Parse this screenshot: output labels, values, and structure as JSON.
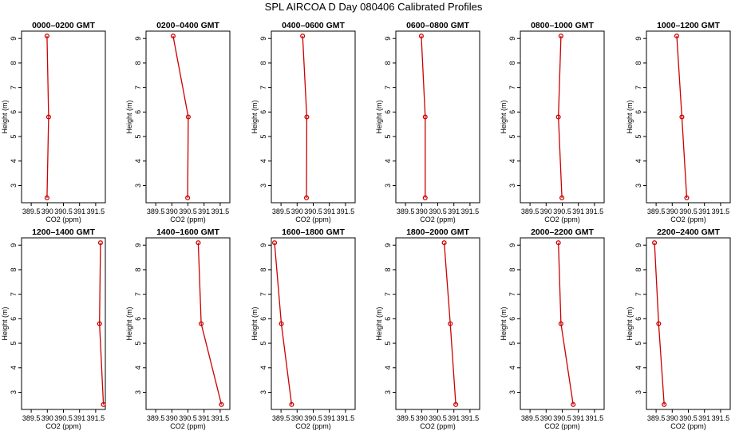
{
  "title": "SPL AIRCOA D  Day 080406  Calibrated Profiles",
  "colors": {
    "series": "#cc0000",
    "axis": "#000000"
  },
  "chart_data": [
    {
      "type": "line",
      "title": "0000–0200 GMT",
      "xlabel": "CO2 (ppm)",
      "ylabel": "Height (m)",
      "xlim": [
        389.2,
        391.8
      ],
      "ylim": [
        2.3,
        9.3
      ],
      "xticks": [
        "389.5",
        "390",
        "390.5",
        "391",
        "391.5"
      ],
      "yticks": [
        "3",
        "4",
        "5",
        "6",
        "7",
        "8",
        "9"
      ],
      "series": [
        {
          "values": [
            {
              "x": 389.99,
              "y": 2.5
            },
            {
              "x": 390.04,
              "y": 5.8
            },
            {
              "x": 389.99,
              "y": 9.1
            }
          ]
        }
      ]
    },
    {
      "type": "line",
      "title": "0200–0400 GMT",
      "xlabel": "CO2 (ppm)",
      "ylabel": "Height (m)",
      "xlim": [
        389.2,
        391.8
      ],
      "ylim": [
        2.3,
        9.3
      ],
      "xticks": [
        "389.5",
        "390",
        "390.5",
        "391",
        "391.5"
      ],
      "yticks": [
        "3",
        "4",
        "5",
        "6",
        "7",
        "8",
        "9"
      ],
      "series": [
        {
          "values": [
            {
              "x": 390.49,
              "y": 2.5
            },
            {
              "x": 390.51,
              "y": 5.8
            },
            {
              "x": 390.04,
              "y": 9.1
            }
          ]
        }
      ]
    },
    {
      "type": "line",
      "title": "0400–0600 GMT",
      "xlabel": "CO2 (ppm)",
      "ylabel": "Height (m)",
      "xlim": [
        389.2,
        391.8
      ],
      "ylim": [
        2.3,
        9.3
      ],
      "xticks": [
        "389.5",
        "390",
        "390.5",
        "391",
        "391.5"
      ],
      "yticks": [
        "3",
        "4",
        "5",
        "6",
        "7",
        "8",
        "9"
      ],
      "series": [
        {
          "values": [
            {
              "x": 390.29,
              "y": 2.5
            },
            {
              "x": 390.3,
              "y": 5.8
            },
            {
              "x": 390.17,
              "y": 9.1
            }
          ]
        }
      ]
    },
    {
      "type": "line",
      "title": "0600–0800 GMT",
      "xlabel": "CO2 (ppm)",
      "ylabel": "Height (m)",
      "xlim": [
        389.2,
        391.8
      ],
      "ylim": [
        2.3,
        9.3
      ],
      "xticks": [
        "389.5",
        "390",
        "390.5",
        "391",
        "391.5"
      ],
      "yticks": [
        "3",
        "4",
        "5",
        "6",
        "7",
        "8",
        "9"
      ],
      "series": [
        {
          "values": [
            {
              "x": 390.11,
              "y": 2.5
            },
            {
              "x": 390.11,
              "y": 5.8
            },
            {
              "x": 389.99,
              "y": 9.1
            }
          ]
        }
      ]
    },
    {
      "type": "line",
      "title": "0800–1000 GMT",
      "xlabel": "CO2 (ppm)",
      "ylabel": "Height (m)",
      "xlim": [
        389.2,
        391.8
      ],
      "ylim": [
        2.3,
        9.3
      ],
      "xticks": [
        "389.5",
        "390",
        "390.5",
        "391",
        "391.5"
      ],
      "yticks": [
        "3",
        "4",
        "5",
        "6",
        "7",
        "8",
        "9"
      ],
      "series": [
        {
          "values": [
            {
              "x": 390.49,
              "y": 2.5
            },
            {
              "x": 390.38,
              "y": 5.8
            },
            {
              "x": 390.46,
              "y": 9.1
            }
          ]
        }
      ]
    },
    {
      "type": "line",
      "title": "1000–1200 GMT",
      "xlabel": "CO2 (ppm)",
      "ylabel": "Height (m)",
      "xlim": [
        389.2,
        391.8
      ],
      "ylim": [
        2.3,
        9.3
      ],
      "xticks": [
        "389.5",
        "390",
        "390.5",
        "391",
        "391.5"
      ],
      "yticks": [
        "3",
        "4",
        "5",
        "6",
        "7",
        "8",
        "9"
      ],
      "series": [
        {
          "values": [
            {
              "x": 390.45,
              "y": 2.5
            },
            {
              "x": 390.3,
              "y": 5.8
            },
            {
              "x": 390.14,
              "y": 9.1
            }
          ]
        }
      ]
    },
    {
      "type": "line",
      "title": "1200–1400 GMT",
      "xlabel": "CO2 (ppm)",
      "ylabel": "Height (m)",
      "xlim": [
        389.2,
        391.8
      ],
      "ylim": [
        2.3,
        9.3
      ],
      "xticks": [
        "389.5",
        "390",
        "390.5",
        "391",
        "391.5"
      ],
      "yticks": [
        "3",
        "4",
        "5",
        "6",
        "7",
        "8",
        "9"
      ],
      "series": [
        {
          "values": [
            {
              "x": 391.74,
              "y": 2.5
            },
            {
              "x": 391.62,
              "y": 5.8
            },
            {
              "x": 391.65,
              "y": 9.1
            }
          ]
        }
      ]
    },
    {
      "type": "line",
      "title": "1400–1600 GMT",
      "xlabel": "CO2 (ppm)",
      "ylabel": "Height (m)",
      "xlim": [
        389.2,
        391.8
      ],
      "ylim": [
        2.3,
        9.3
      ],
      "xticks": [
        "389.5",
        "390",
        "390.5",
        "391",
        "391.5"
      ],
      "yticks": [
        "3",
        "4",
        "5",
        "6",
        "7",
        "8",
        "9"
      ],
      "series": [
        {
          "values": [
            {
              "x": 391.54,
              "y": 2.5
            },
            {
              "x": 390.91,
              "y": 5.8
            },
            {
              "x": 390.82,
              "y": 9.1
            }
          ]
        }
      ]
    },
    {
      "type": "line",
      "title": "1600–1800 GMT",
      "xlabel": "CO2 (ppm)",
      "ylabel": "Height (m)",
      "xlim": [
        389.2,
        391.8
      ],
      "ylim": [
        2.3,
        9.3
      ],
      "xticks": [
        "389.5",
        "390",
        "390.5",
        "391",
        "391.5"
      ],
      "yticks": [
        "3",
        "4",
        "5",
        "6",
        "7",
        "8",
        "9"
      ],
      "series": [
        {
          "values": [
            {
              "x": 389.83,
              "y": 2.5
            },
            {
              "x": 389.51,
              "y": 5.8
            },
            {
              "x": 389.3,
              "y": 9.1
            }
          ]
        }
      ]
    },
    {
      "type": "line",
      "title": "1800–2000 GMT",
      "xlabel": "CO2 (ppm)",
      "ylabel": "Height (m)",
      "xlim": [
        389.2,
        391.8
      ],
      "ylim": [
        2.3,
        9.3
      ],
      "xticks": [
        "389.5",
        "390",
        "390.5",
        "391",
        "391.5"
      ],
      "yticks": [
        "3",
        "4",
        "5",
        "6",
        "7",
        "8",
        "9"
      ],
      "series": [
        {
          "values": [
            {
              "x": 391.06,
              "y": 2.5
            },
            {
              "x": 390.89,
              "y": 5.8
            },
            {
              "x": 390.7,
              "y": 9.1
            }
          ]
        }
      ]
    },
    {
      "type": "line",
      "title": "2000–2200 GMT",
      "xlabel": "CO2 (ppm)",
      "ylabel": "Height (m)",
      "xlim": [
        389.2,
        391.8
      ],
      "ylim": [
        2.3,
        9.3
      ],
      "xticks": [
        "389.5",
        "390",
        "390.5",
        "391",
        "391.5"
      ],
      "yticks": [
        "3",
        "4",
        "5",
        "6",
        "7",
        "8",
        "9"
      ],
      "series": [
        {
          "values": [
            {
              "x": 390.84,
              "y": 2.5
            },
            {
              "x": 390.46,
              "y": 5.8
            },
            {
              "x": 390.38,
              "y": 9.1
            }
          ]
        }
      ]
    },
    {
      "type": "line",
      "title": "2200–2400 GMT",
      "xlabel": "CO2 (ppm)",
      "ylabel": "Height (m)",
      "xlim": [
        389.2,
        391.8
      ],
      "ylim": [
        2.3,
        9.3
      ],
      "xticks": [
        "389.5",
        "390",
        "390.5",
        "391",
        "391.5"
      ],
      "yticks": [
        "3",
        "4",
        "5",
        "6",
        "7",
        "8",
        "9"
      ],
      "series": [
        {
          "values": [
            {
              "x": 389.75,
              "y": 2.5
            },
            {
              "x": 389.58,
              "y": 5.8
            },
            {
              "x": 389.45,
              "y": 9.1
            }
          ]
        }
      ]
    }
  ]
}
